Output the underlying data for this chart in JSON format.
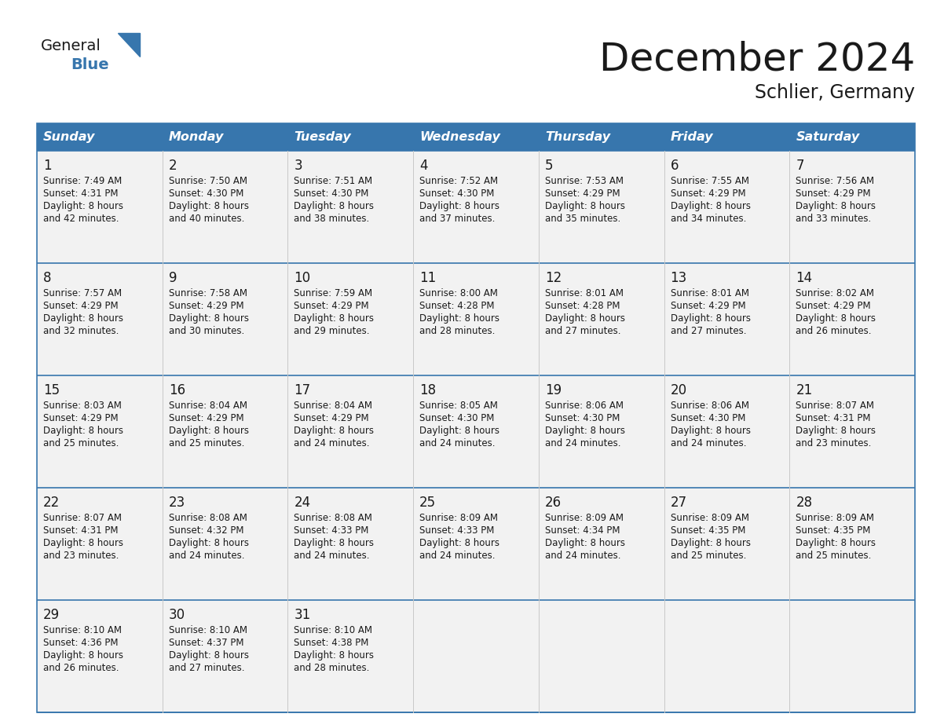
{
  "title": "December 2024",
  "subtitle": "Schlier, Germany",
  "header_color": "#3776AD",
  "header_text_color": "#FFFFFF",
  "row_bg_even": "#F2F2F2",
  "row_bg_odd": "#FFFFFF",
  "border_color": "#3776AD",
  "text_color": "#1a1a1a",
  "logo_general_color": "#1a1a1a",
  "logo_blue_color": "#3776AD",
  "days_of_week": [
    "Sunday",
    "Monday",
    "Tuesday",
    "Wednesday",
    "Thursday",
    "Friday",
    "Saturday"
  ],
  "calendar_data": [
    [
      {
        "day": "1",
        "sunrise": "7:49 AM",
        "sunset": "4:31 PM",
        "dl1": "Daylight: 8 hours",
        "dl2": "and 42 minutes."
      },
      {
        "day": "2",
        "sunrise": "7:50 AM",
        "sunset": "4:30 PM",
        "dl1": "Daylight: 8 hours",
        "dl2": "and 40 minutes."
      },
      {
        "day": "3",
        "sunrise": "7:51 AM",
        "sunset": "4:30 PM",
        "dl1": "Daylight: 8 hours",
        "dl2": "and 38 minutes."
      },
      {
        "day": "4",
        "sunrise": "7:52 AM",
        "sunset": "4:30 PM",
        "dl1": "Daylight: 8 hours",
        "dl2": "and 37 minutes."
      },
      {
        "day": "5",
        "sunrise": "7:53 AM",
        "sunset": "4:29 PM",
        "dl1": "Daylight: 8 hours",
        "dl2": "and 35 minutes."
      },
      {
        "day": "6",
        "sunrise": "7:55 AM",
        "sunset": "4:29 PM",
        "dl1": "Daylight: 8 hours",
        "dl2": "and 34 minutes."
      },
      {
        "day": "7",
        "sunrise": "7:56 AM",
        "sunset": "4:29 PM",
        "dl1": "Daylight: 8 hours",
        "dl2": "and 33 minutes."
      }
    ],
    [
      {
        "day": "8",
        "sunrise": "7:57 AM",
        "sunset": "4:29 PM",
        "dl1": "Daylight: 8 hours",
        "dl2": "and 32 minutes."
      },
      {
        "day": "9",
        "sunrise": "7:58 AM",
        "sunset": "4:29 PM",
        "dl1": "Daylight: 8 hours",
        "dl2": "and 30 minutes."
      },
      {
        "day": "10",
        "sunrise": "7:59 AM",
        "sunset": "4:29 PM",
        "dl1": "Daylight: 8 hours",
        "dl2": "and 29 minutes."
      },
      {
        "day": "11",
        "sunrise": "8:00 AM",
        "sunset": "4:28 PM",
        "dl1": "Daylight: 8 hours",
        "dl2": "and 28 minutes."
      },
      {
        "day": "12",
        "sunrise": "8:01 AM",
        "sunset": "4:28 PM",
        "dl1": "Daylight: 8 hours",
        "dl2": "and 27 minutes."
      },
      {
        "day": "13",
        "sunrise": "8:01 AM",
        "sunset": "4:29 PM",
        "dl1": "Daylight: 8 hours",
        "dl2": "and 27 minutes."
      },
      {
        "day": "14",
        "sunrise": "8:02 AM",
        "sunset": "4:29 PM",
        "dl1": "Daylight: 8 hours",
        "dl2": "and 26 minutes."
      }
    ],
    [
      {
        "day": "15",
        "sunrise": "8:03 AM",
        "sunset": "4:29 PM",
        "dl1": "Daylight: 8 hours",
        "dl2": "and 25 minutes."
      },
      {
        "day": "16",
        "sunrise": "8:04 AM",
        "sunset": "4:29 PM",
        "dl1": "Daylight: 8 hours",
        "dl2": "and 25 minutes."
      },
      {
        "day": "17",
        "sunrise": "8:04 AM",
        "sunset": "4:29 PM",
        "dl1": "Daylight: 8 hours",
        "dl2": "and 24 minutes."
      },
      {
        "day": "18",
        "sunrise": "8:05 AM",
        "sunset": "4:30 PM",
        "dl1": "Daylight: 8 hours",
        "dl2": "and 24 minutes."
      },
      {
        "day": "19",
        "sunrise": "8:06 AM",
        "sunset": "4:30 PM",
        "dl1": "Daylight: 8 hours",
        "dl2": "and 24 minutes."
      },
      {
        "day": "20",
        "sunrise": "8:06 AM",
        "sunset": "4:30 PM",
        "dl1": "Daylight: 8 hours",
        "dl2": "and 24 minutes."
      },
      {
        "day": "21",
        "sunrise": "8:07 AM",
        "sunset": "4:31 PM",
        "dl1": "Daylight: 8 hours",
        "dl2": "and 23 minutes."
      }
    ],
    [
      {
        "day": "22",
        "sunrise": "8:07 AM",
        "sunset": "4:31 PM",
        "dl1": "Daylight: 8 hours",
        "dl2": "and 23 minutes."
      },
      {
        "day": "23",
        "sunrise": "8:08 AM",
        "sunset": "4:32 PM",
        "dl1": "Daylight: 8 hours",
        "dl2": "and 24 minutes."
      },
      {
        "day": "24",
        "sunrise": "8:08 AM",
        "sunset": "4:33 PM",
        "dl1": "Daylight: 8 hours",
        "dl2": "and 24 minutes."
      },
      {
        "day": "25",
        "sunrise": "8:09 AM",
        "sunset": "4:33 PM",
        "dl1": "Daylight: 8 hours",
        "dl2": "and 24 minutes."
      },
      {
        "day": "26",
        "sunrise": "8:09 AM",
        "sunset": "4:34 PM",
        "dl1": "Daylight: 8 hours",
        "dl2": "and 24 minutes."
      },
      {
        "day": "27",
        "sunrise": "8:09 AM",
        "sunset": "4:35 PM",
        "dl1": "Daylight: 8 hours",
        "dl2": "and 25 minutes."
      },
      {
        "day": "28",
        "sunrise": "8:09 AM",
        "sunset": "4:35 PM",
        "dl1": "Daylight: 8 hours",
        "dl2": "and 25 minutes."
      }
    ],
    [
      {
        "day": "29",
        "sunrise": "8:10 AM",
        "sunset": "4:36 PM",
        "dl1": "Daylight: 8 hours",
        "dl2": "and 26 minutes."
      },
      {
        "day": "30",
        "sunrise": "8:10 AM",
        "sunset": "4:37 PM",
        "dl1": "Daylight: 8 hours",
        "dl2": "and 27 minutes."
      },
      {
        "day": "31",
        "sunrise": "8:10 AM",
        "sunset": "4:38 PM",
        "dl1": "Daylight: 8 hours",
        "dl2": "and 28 minutes."
      },
      null,
      null,
      null,
      null
    ]
  ]
}
